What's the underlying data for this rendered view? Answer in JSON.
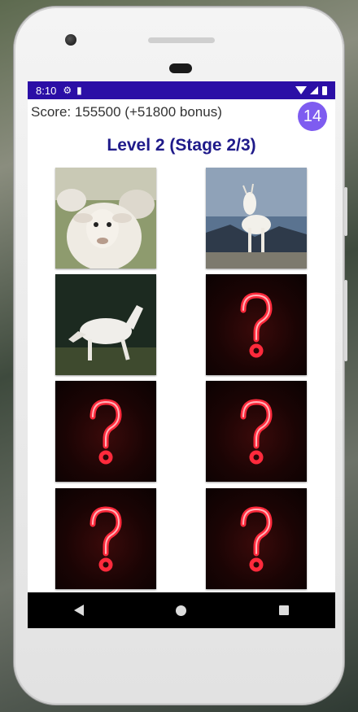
{
  "status_bar": {
    "time": "8:10",
    "icons": [
      "gear-icon",
      "sd-card-icon",
      "wifi-icon",
      "signal-icon",
      "battery-icon"
    ]
  },
  "game": {
    "score_text": "Score: 155500 (+51800 bonus)",
    "counter": "14",
    "level_title": "Level 2 (Stage 2/3)"
  },
  "cards": [
    {
      "state": "revealed",
      "image": "sheep"
    },
    {
      "state": "revealed",
      "image": "goat"
    },
    {
      "state": "revealed",
      "image": "horse"
    },
    {
      "state": "hidden",
      "image": "question-mark"
    },
    {
      "state": "hidden",
      "image": "question-mark"
    },
    {
      "state": "hidden",
      "image": "question-mark"
    },
    {
      "state": "hidden",
      "image": "question-mark"
    },
    {
      "state": "hidden",
      "image": "question-mark"
    }
  ],
  "colors": {
    "status_bar": "#2b0fa6",
    "counter_badge": "#7e5cf0",
    "level_title": "#1f1a8a",
    "neon_question": "#ff2a3c"
  },
  "nav_bar": {
    "buttons": [
      "back-icon",
      "home-icon",
      "recent-apps-icon"
    ]
  }
}
